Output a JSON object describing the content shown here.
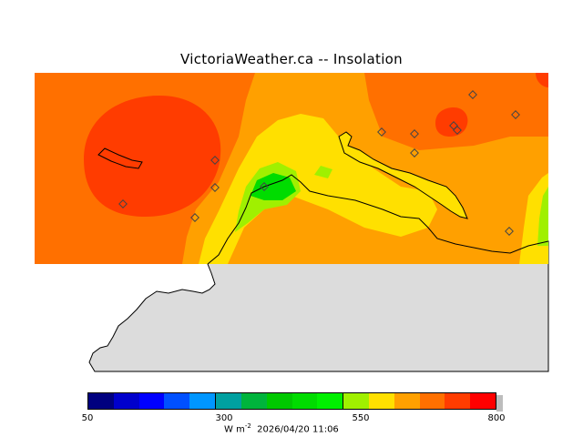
{
  "title": "VictoriaWeather.ca  --  Insolation",
  "colorbar": {
    "ticks": [
      "50",
      "300",
      "550",
      "800"
    ],
    "units_text": "W m",
    "units_exponent": "-2",
    "timestamp": "2026/04/20 11:06",
    "colors": [
      "#00007f",
      "#0000cc",
      "#0000ff",
      "#0050ff",
      "#0096ff",
      "#00a0a0",
      "#00b43c",
      "#00c800",
      "#00dc00",
      "#00f000",
      "#a0f000",
      "#ffe000",
      "#ffa000",
      "#ff7000",
      "#ff3c00",
      "#ff0000"
    ]
  },
  "palette": {
    "land": "#dcdcdc",
    "high": "#ff3c00",
    "midhigh": "#ff7000",
    "mid": "#ffa000",
    "low": "#ffe000",
    "lime": "#a0f000",
    "green": "#00f000",
    "brightgreen": "#00dc00"
  }
}
